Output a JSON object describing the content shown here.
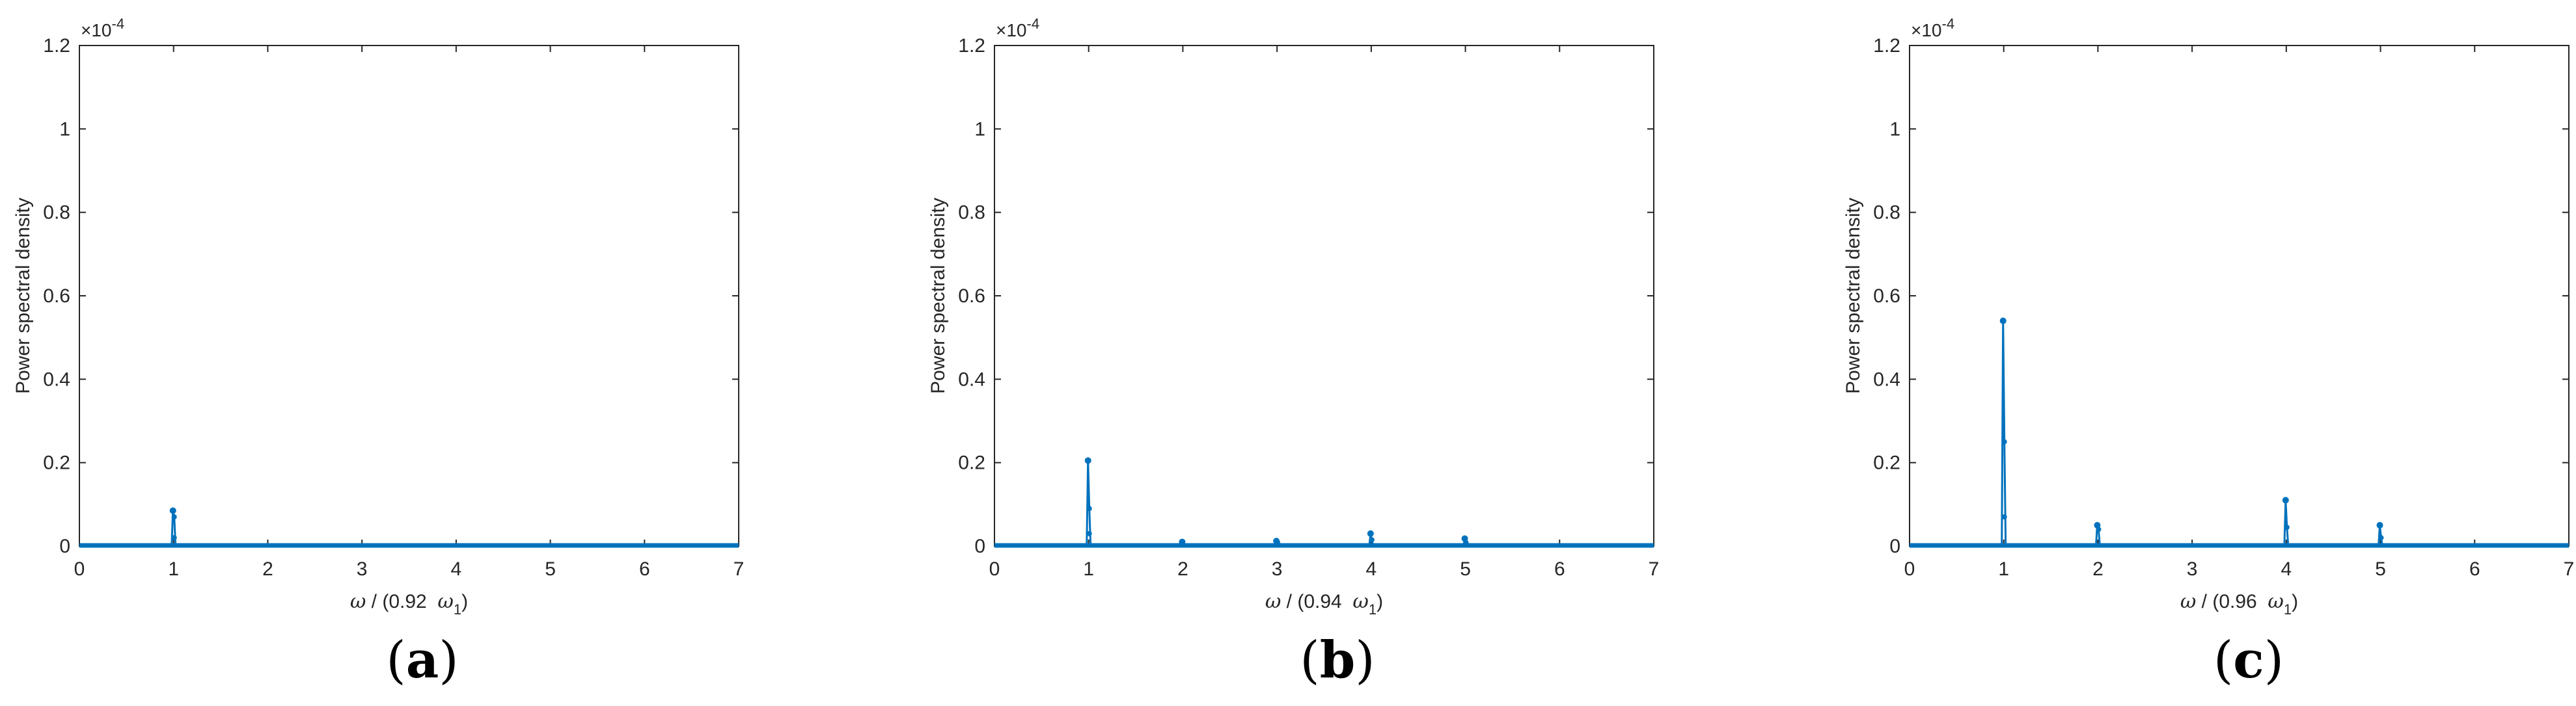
{
  "figure": {
    "chart_data": [
      {
        "type": "line",
        "panel_label": "a",
        "ylabel": "Power spectral density",
        "xlabel": {
          "symbol": "ω",
          "text": " / (0.92  ",
          "symbol2": "ω",
          "subscript": "1",
          "close": ")"
        },
        "y_exponent_label": "×10",
        "y_exponent": "-4",
        "xlim": [
          0,
          7
        ],
        "ylim": [
          0,
          1.2
        ],
        "xticks": [
          "0",
          "1",
          "2",
          "3",
          "4",
          "5",
          "6",
          "7"
        ],
        "yticks": [
          "0",
          "0.2",
          "0.4",
          "0.6",
          "0.8",
          "1",
          "1.2"
        ],
        "grid": false,
        "series_color": "#0072bd",
        "peaks": [
          {
            "x": 1.0,
            "y": 0.085,
            "extra": [
              0.07,
              0.02
            ]
          }
        ]
      },
      {
        "type": "line",
        "panel_label": "b",
        "ylabel": "Power spectral density",
        "xlabel": {
          "symbol": "ω",
          "text": " / (0.94  ",
          "symbol2": "ω",
          "subscript": "1",
          "close": ")"
        },
        "y_exponent_label": "×10",
        "y_exponent": "-4",
        "xlim": [
          0,
          7
        ],
        "ylim": [
          0,
          1.2
        ],
        "xticks": [
          "0",
          "1",
          "2",
          "3",
          "4",
          "5",
          "6",
          "7"
        ],
        "yticks": [
          "0",
          "0.2",
          "0.4",
          "0.6",
          "0.8",
          "1",
          "1.2"
        ],
        "grid": false,
        "series_color": "#0072bd",
        "peaks": [
          {
            "x": 1.0,
            "y": 0.205,
            "extra": [
              0.09,
              0.03
            ]
          },
          {
            "x": 2.0,
            "y": 0.01,
            "extra": []
          },
          {
            "x": 3.0,
            "y": 0.012,
            "extra": [
              0.008
            ]
          },
          {
            "x": 4.0,
            "y": 0.03,
            "extra": [
              0.015
            ]
          },
          {
            "x": 5.0,
            "y": 0.018,
            "extra": [
              0.008
            ]
          }
        ]
      },
      {
        "type": "line",
        "panel_label": "c",
        "ylabel": "Power spectral density",
        "xlabel": {
          "symbol": "ω",
          "text": " / (0.96  ",
          "symbol2": "ω",
          "subscript": "1",
          "close": ")"
        },
        "y_exponent_label": "×10",
        "y_exponent": "-4",
        "xlim": [
          0,
          7
        ],
        "ylim": [
          0,
          1.2
        ],
        "xticks": [
          "0",
          "1",
          "2",
          "3",
          "4",
          "5",
          "6",
          "7"
        ],
        "yticks": [
          "0",
          "0.2",
          "0.4",
          "0.6",
          "0.8",
          "1",
          "1.2"
        ],
        "grid": false,
        "series_color": "#0072bd",
        "peaks": [
          {
            "x": 1.0,
            "y": 0.54,
            "extra": [
              0.25,
              0.07
            ]
          },
          {
            "x": 2.0,
            "y": 0.05,
            "extra": [
              0.04
            ]
          },
          {
            "x": 4.0,
            "y": 0.11,
            "extra": [
              0.045
            ]
          },
          {
            "x": 5.0,
            "y": 0.05,
            "extra": [
              0.02
            ]
          }
        ]
      }
    ]
  }
}
